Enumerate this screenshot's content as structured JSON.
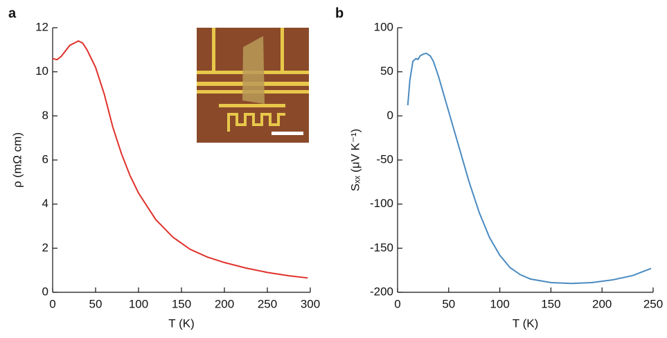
{
  "chart_data": [
    {
      "type": "line",
      "panel_label": "a",
      "xlabel": "T (K)",
      "ylabel": "ρ (mΩ cm)",
      "color": "#e0302a",
      "x": [
        0,
        5,
        10,
        20,
        30,
        35,
        40,
        50,
        60,
        70,
        80,
        90,
        100,
        120,
        140,
        160,
        180,
        200,
        225,
        250,
        275,
        297
      ],
      "values": [
        10.6,
        10.55,
        10.7,
        11.2,
        11.4,
        11.3,
        11.0,
        10.2,
        9.0,
        7.5,
        6.3,
        5.3,
        4.5,
        3.3,
        2.5,
        1.95,
        1.6,
        1.35,
        1.1,
        0.9,
        0.75,
        0.65
      ],
      "xlim": [
        0,
        300
      ],
      "xticks": [
        0,
        50,
        100,
        150,
        200,
        250,
        300
      ],
      "ylim": [
        0,
        12
      ],
      "yticks": [
        0,
        2,
        4,
        6,
        8,
        10,
        12
      ]
    },
    {
      "type": "line",
      "panel_label": "b",
      "xlabel": "T (K)",
      "ylabel": "Sₓₓ (μV K⁻¹)",
      "color": "#4a8ac0",
      "x": [
        10,
        12,
        15,
        18,
        20,
        22,
        25,
        28,
        32,
        35,
        40,
        50,
        60,
        70,
        80,
        90,
        100,
        110,
        120,
        130,
        150,
        170,
        190,
        210,
        230,
        248
      ],
      "values": [
        12,
        40,
        62,
        65,
        64,
        68,
        70,
        71,
        68,
        62,
        45,
        5,
        -35,
        -75,
        -110,
        -138,
        -158,
        -172,
        -180,
        -185,
        -189,
        -190,
        -189,
        -186,
        -181,
        -173
      ],
      "xlim": [
        0,
        250
      ],
      "xticks": [
        0,
        50,
        100,
        150,
        200,
        250
      ],
      "ylim": [
        -200,
        100
      ],
      "yticks": [
        -200,
        -150,
        -100,
        -50,
        0,
        50,
        100
      ]
    }
  ]
}
